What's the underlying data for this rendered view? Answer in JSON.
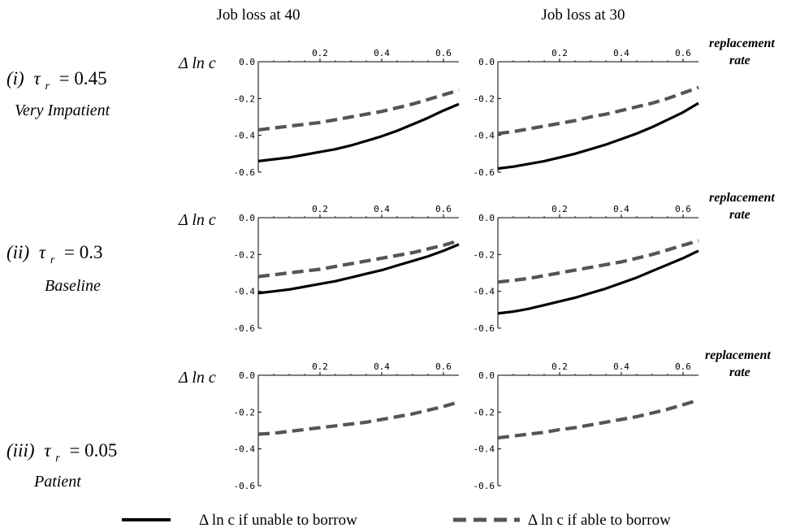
{
  "column_titles": [
    "Job loss at 40",
    "Job loss at 30"
  ],
  "rows": [
    {
      "tag": "(i)",
      "tau_text": "τ",
      "tau_sub": "r",
      "tau_value": "= 0.45",
      "subtitle": "Very Impatient"
    },
    {
      "tag": "(ii)",
      "tau_text": "τ",
      "tau_sub": "r",
      "tau_value": "= 0.3",
      "subtitle": "Baseline"
    },
    {
      "tag": "(iii)",
      "tau_text": "τ",
      "tau_sub": "r",
      "tau_value": "= 0.05",
      "subtitle": "Patient"
    }
  ],
  "ylabel": "Δ ln c",
  "x_annotation": [
    "replacement",
    "rate"
  ],
  "legend": {
    "unable": "Δ ln c  if unable to borrow",
    "able": "Δ ln c  if able to borrow"
  },
  "colors": {
    "unable": "#000000",
    "able": "#555555"
  },
  "chart_data": {
    "type": "line",
    "xlim": [
      0,
      0.65
    ],
    "ylim": [
      -0.6,
      0
    ],
    "xticks": [
      0.2,
      0.4,
      0.6
    ],
    "xtick_labels": [
      "0.2",
      "0.4",
      "0.6"
    ],
    "yticks": [
      0,
      -0.2,
      -0.4,
      -0.6
    ],
    "ytick_labels": [
      "0.0",
      "-0.2",
      "-0.4",
      "-0.6"
    ],
    "x": [
      0.0,
      0.05,
      0.1,
      0.15,
      0.2,
      0.25,
      0.3,
      0.35,
      0.4,
      0.45,
      0.5,
      0.55,
      0.6,
      0.65
    ],
    "panels": [
      {
        "row": 0,
        "col": 0,
        "series": [
          {
            "name": "unable",
            "values": [
              -0.54,
              -0.53,
              -0.52,
              -0.505,
              -0.49,
              -0.475,
              -0.455,
              -0.43,
              -0.405,
              -0.375,
              -0.34,
              -0.305,
              -0.265,
              -0.23
            ]
          },
          {
            "name": "able",
            "values": [
              -0.37,
              -0.36,
              -0.35,
              -0.34,
              -0.33,
              -0.315,
              -0.3,
              -0.285,
              -0.27,
              -0.25,
              -0.23,
              -0.205,
              -0.18,
              -0.155
            ]
          }
        ]
      },
      {
        "row": 0,
        "col": 1,
        "series": [
          {
            "name": "unable",
            "values": [
              -0.58,
              -0.57,
              -0.555,
              -0.54,
              -0.52,
              -0.5,
              -0.475,
              -0.45,
              -0.42,
              -0.39,
              -0.355,
              -0.315,
              -0.275,
              -0.225
            ]
          },
          {
            "name": "able",
            "values": [
              -0.39,
              -0.38,
              -0.365,
              -0.35,
              -0.335,
              -0.32,
              -0.3,
              -0.285,
              -0.265,
              -0.245,
              -0.225,
              -0.2,
              -0.17,
              -0.14
            ]
          }
        ]
      },
      {
        "row": 1,
        "col": 0,
        "series": [
          {
            "name": "unable",
            "values": [
              -0.41,
              -0.4,
              -0.39,
              -0.375,
              -0.36,
              -0.345,
              -0.325,
              -0.305,
              -0.285,
              -0.26,
              -0.235,
              -0.21,
              -0.18,
              -0.145
            ]
          },
          {
            "name": "able",
            "values": [
              -0.32,
              -0.31,
              -0.3,
              -0.29,
              -0.28,
              -0.265,
              -0.25,
              -0.235,
              -0.22,
              -0.205,
              -0.19,
              -0.17,
              -0.15,
              -0.125
            ]
          }
        ]
      },
      {
        "row": 1,
        "col": 1,
        "series": [
          {
            "name": "unable",
            "values": [
              -0.52,
              -0.51,
              -0.495,
              -0.475,
              -0.455,
              -0.435,
              -0.41,
              -0.385,
              -0.355,
              -0.325,
              -0.29,
              -0.255,
              -0.22,
              -0.18
            ]
          },
          {
            "name": "able",
            "values": [
              -0.35,
              -0.34,
              -0.33,
              -0.315,
              -0.3,
              -0.285,
              -0.27,
              -0.255,
              -0.24,
              -0.22,
              -0.2,
              -0.175,
              -0.15,
              -0.125
            ]
          }
        ]
      },
      {
        "row": 2,
        "col": 0,
        "series": [
          {
            "name": "able",
            "values": [
              -0.32,
              -0.315,
              -0.305,
              -0.295,
              -0.285,
              -0.275,
              -0.265,
              -0.255,
              -0.24,
              -0.225,
              -0.21,
              -0.19,
              -0.17,
              -0.145
            ]
          }
        ]
      },
      {
        "row": 2,
        "col": 1,
        "series": [
          {
            "name": "able",
            "values": [
              -0.34,
              -0.33,
              -0.32,
              -0.31,
              -0.295,
              -0.285,
              -0.27,
              -0.255,
              -0.24,
              -0.225,
              -0.205,
              -0.185,
              -0.16,
              -0.135
            ]
          }
        ]
      }
    ]
  }
}
